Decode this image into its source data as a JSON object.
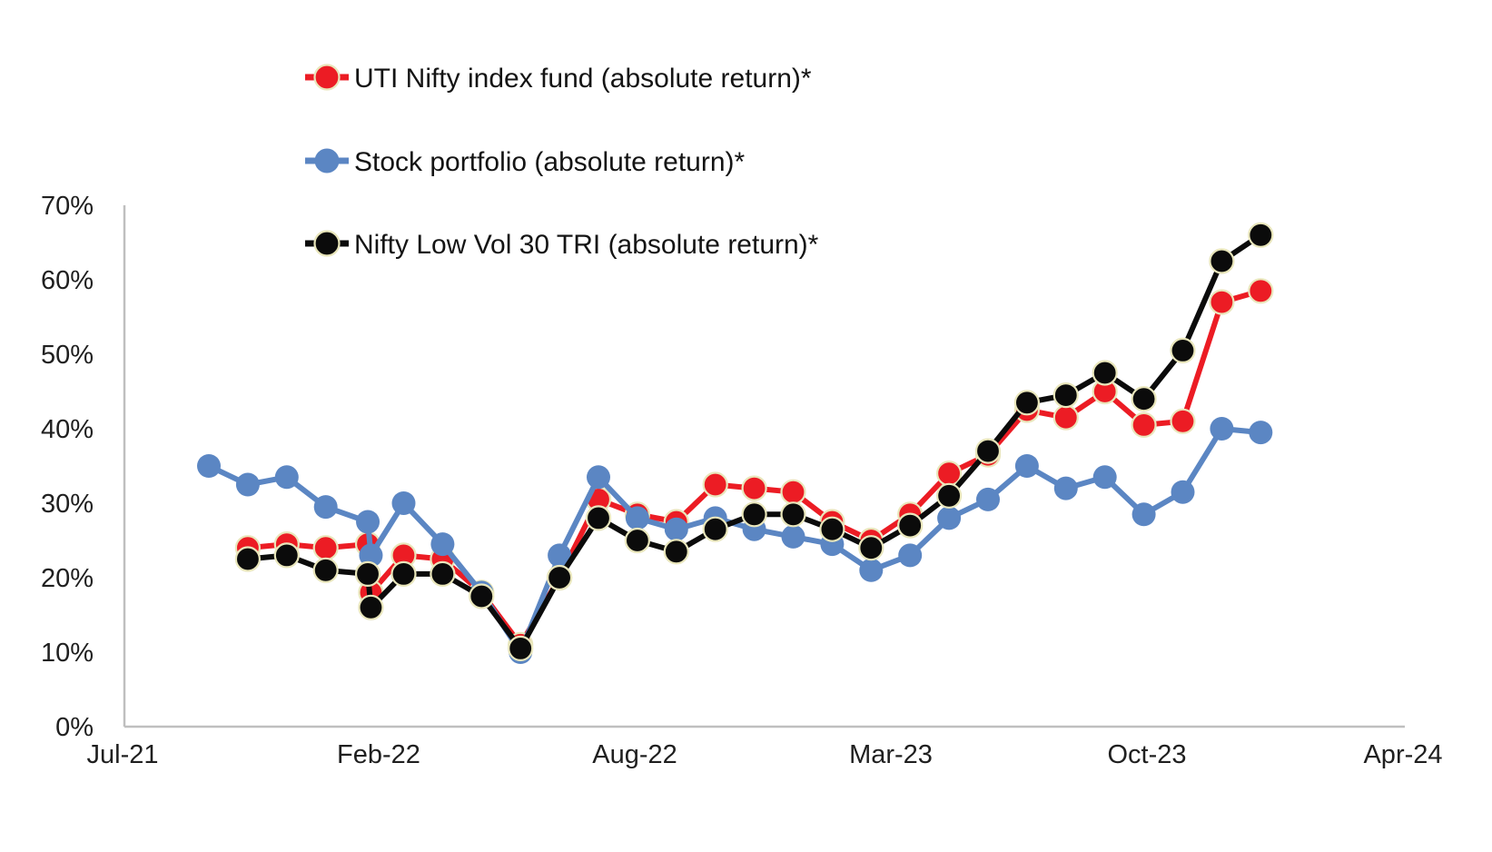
{
  "chart_data": {
    "type": "line",
    "title": "",
    "xlabel": "",
    "ylabel": "",
    "grid": false,
    "legend_position": "top-left, stacked vertically",
    "x": [
      "Sep-21",
      "Oct-21",
      "Nov-21",
      "Dec-21",
      "Jan-22",
      "Jan-22 (late)",
      "Feb-22",
      "Mar-22",
      "Apr-22",
      "May-22",
      "Jun-22",
      "Jul-22",
      "Aug-22",
      "Sep-22",
      "Oct-22",
      "Nov-22",
      "Dec-22",
      "Jan-23",
      "Feb-23",
      "Mar-23",
      "Apr-23",
      "May-23",
      "Jun-23",
      "Jul-23",
      "Aug-23",
      "Sep-23",
      "Oct-23",
      "Nov-23",
      "Dec-23"
    ],
    "x_month_offset": [
      0,
      1,
      2,
      3,
      4.08,
      4.16,
      5,
      6,
      7,
      8,
      9,
      10,
      11,
      12,
      13,
      14,
      15,
      16,
      17,
      18,
      19,
      20,
      21,
      22,
      23,
      24,
      25,
      26,
      27
    ],
    "series": [
      {
        "name": "UTI Nifty index fund (absolute return)*",
        "color": "#ec1c24",
        "unit": "%",
        "values": [
          null,
          24,
          24.5,
          24,
          24.5,
          18,
          23,
          22.5,
          18,
          11,
          20,
          30.5,
          28.5,
          27.5,
          32.5,
          32,
          31.5,
          27.5,
          25,
          28.5,
          34,
          36.5,
          42.5,
          41.5,
          45,
          40.5,
          41,
          57,
          58.5
        ]
      },
      {
        "name": "Stock portfolio (absolute return)*",
        "color": "#5b86c3",
        "unit": "%",
        "values": [
          35,
          32.5,
          33.5,
          29.5,
          27.5,
          23,
          30,
          24.5,
          18,
          10,
          23,
          33.5,
          28,
          26.5,
          28,
          26.5,
          25.5,
          24.5,
          21,
          23,
          28,
          30.5,
          35,
          32,
          33.5,
          28.5,
          31.5,
          40,
          39.5
        ]
      },
      {
        "name": "Nifty Low Vol 30 TRI (absolute return)*",
        "color": "#0b0b0b",
        "unit": "%",
        "values": [
          null,
          22.5,
          23,
          21,
          20.5,
          16,
          20.5,
          20.5,
          17.5,
          10.5,
          20,
          28,
          25,
          23.5,
          26.5,
          28.5,
          28.5,
          26.5,
          24,
          27,
          31,
          37,
          43.5,
          44.5,
          47.5,
          44,
          50.5,
          62.5,
          66
        ]
      }
    ],
    "y_axis": {
      "min": 0,
      "max": 70,
      "step": 10,
      "tick_labels": [
        "0%",
        "10%",
        "20%",
        "30%",
        "40%",
        "50%",
        "60%",
        "70%"
      ]
    },
    "x_axis": {
      "tick_labels": [
        "Jul-21",
        "Feb-22",
        "Aug-22",
        "Mar-23",
        "Oct-23",
        "Apr-24"
      ]
    }
  }
}
